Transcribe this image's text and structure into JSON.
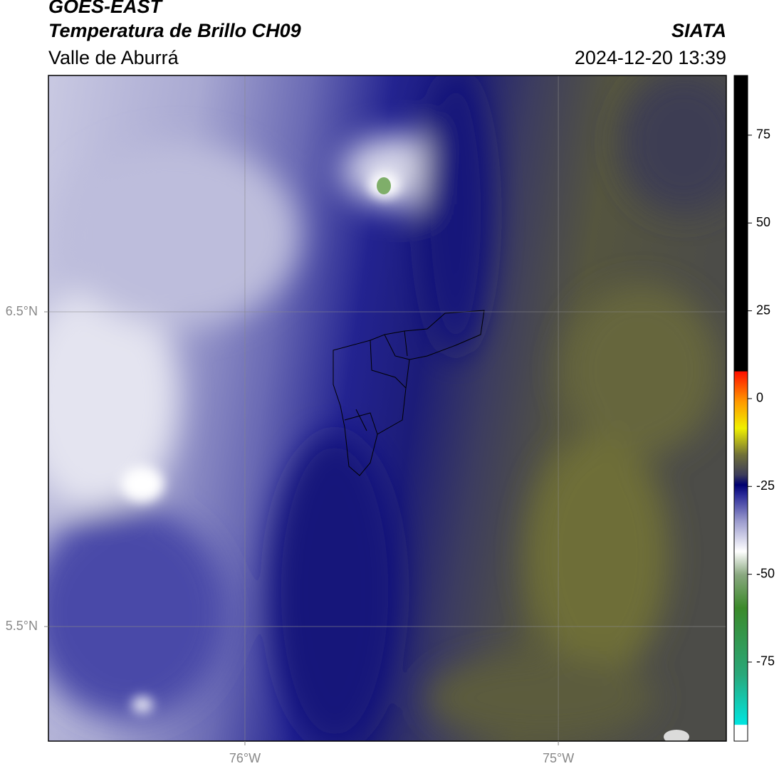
{
  "header": {
    "satellite": "GOES-EAST",
    "product": "Temperatura de Brillo CH09",
    "region": "Valle de Aburrá",
    "source": "SIATA",
    "datetime": "2024-12-20 13:39"
  },
  "map": {
    "xlim": [
      -76.627,
      -74.464
    ],
    "ylim": [
      5.136,
      7.251
    ],
    "xticks": [
      {
        "value": -76,
        "label": "76°W"
      },
      {
        "value": -75,
        "label": "75°W"
      }
    ],
    "yticks": [
      {
        "value": 6.5,
        "label": "6.5°N"
      },
      {
        "value": 5.5,
        "label": "5.5°N"
      }
    ],
    "grid": true
  },
  "colorbar": {
    "lim": [
      -97.5,
      92
    ],
    "ticks": [
      75,
      50,
      25,
      0,
      -25,
      -50,
      -75
    ]
  }
}
